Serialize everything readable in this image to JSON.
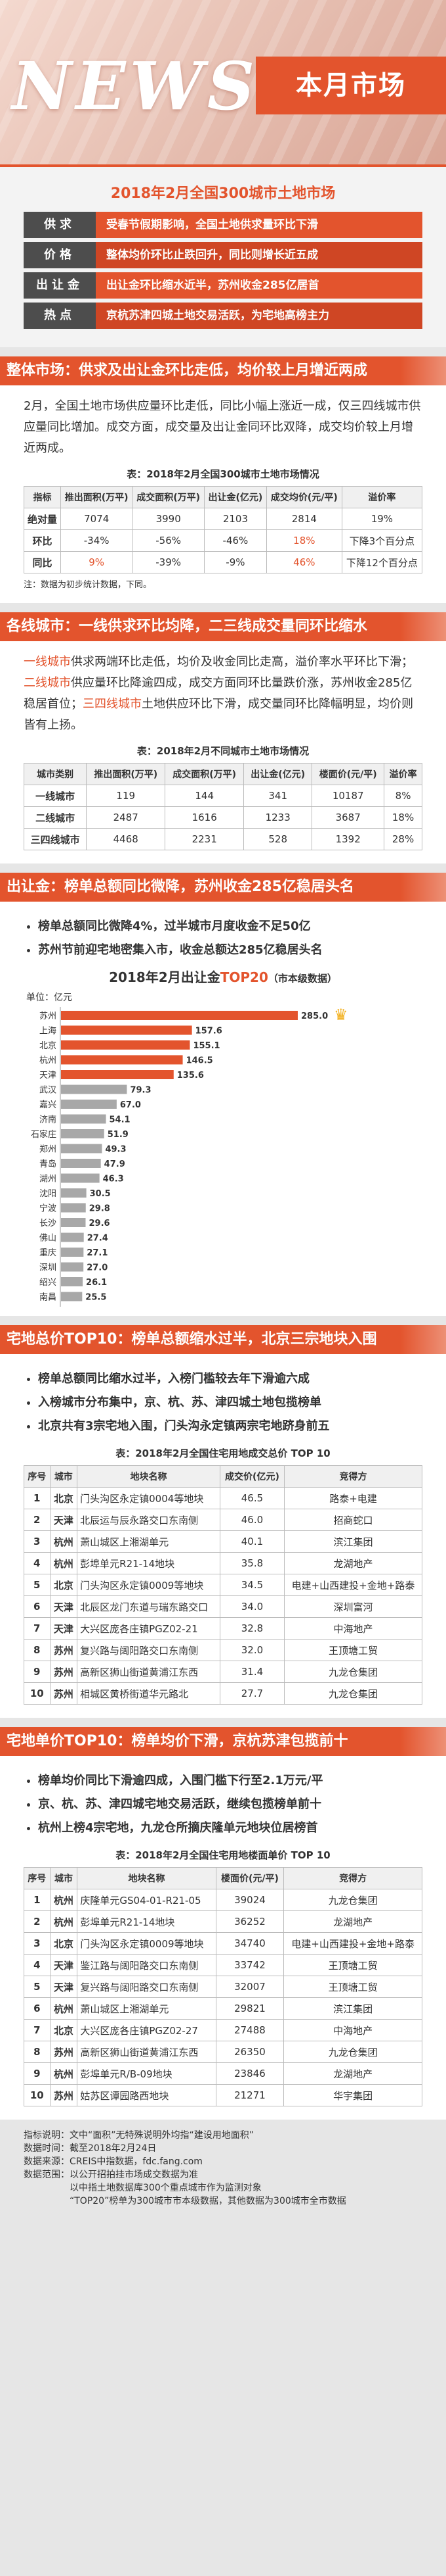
{
  "header": {
    "news": "NEWS",
    "banner": "本月市场"
  },
  "summary": {
    "title": "2018年2月全国300城市土地市场",
    "rows": [
      {
        "k": "供求",
        "v": "受春节假期影响，全国土地供求量环比下滑"
      },
      {
        "k": "价格",
        "v": "整体均价环比止跌回升，同比则增长近五成"
      },
      {
        "k": "出让金",
        "v": "出让金环比缩水近半，苏州收金285亿居首"
      },
      {
        "k": "热点",
        "v": "京杭苏津四城土地交易活跃，为宅地高榜主力"
      }
    ]
  },
  "s1": {
    "title": "整体市场：供求及出让金环比走低，均价较上月增近两成",
    "para": "2月，全国土地市场供应量环比走低，同比小幅上涨近一成，仅三四线城市供应量同比增加。成交方面，成交量及出让金同环比双降，成交均价较上月增近两成。",
    "caption": "表：2018年2月全国300城市土地市场情况",
    "headers": [
      "指标",
      "推出面积(万平)",
      "成交面积(万平)",
      "出让金(亿元)",
      "成交均价(元/平)",
      "溢价率"
    ],
    "rows": [
      [
        "绝对量",
        "7074",
        "3990",
        "2103",
        "2814",
        "19%"
      ],
      [
        "环比",
        "-34%",
        "-56%",
        "-46%",
        "18%",
        "下降3个百分点"
      ],
      [
        "同比",
        "9%",
        "-39%",
        "-9%",
        "46%",
        "下降12个百分点"
      ]
    ],
    "note": "注：数据为初步统计数据，下同。"
  },
  "s2": {
    "title": "各线城市：一线供求环比均降，二三线成交量同环比缩水",
    "p1a": "一线城市",
    "p1b": "供求两端环比走低，均价及收金同比走高，溢价率水平环比下滑；",
    "p1c": "二线城市",
    "p1d": "供应量环比降逾四成，成交方面同环比量跌价涨，苏州收金285亿稳居首位；",
    "p1e": "三四线城市",
    "p1f": "土地供应环比下滑，成交量同环比降幅明显，均价则皆有上扬。",
    "caption": "表：2018年2月不同城市土地市场情况",
    "headers": [
      "城市类别",
      "推出面积(万平)",
      "成交面积(万平)",
      "出让金(亿元)",
      "楼面价(元/平)",
      "溢价率"
    ],
    "rows": [
      [
        "一线城市",
        "119",
        "144",
        "341",
        "10187",
        "8%"
      ],
      [
        "二线城市",
        "2487",
        "1616",
        "1233",
        "3687",
        "18%"
      ],
      [
        "三四线城市",
        "4468",
        "2231",
        "528",
        "1392",
        "28%"
      ]
    ]
  },
  "s3": {
    "title": "出让金：榜单总额同比微降，苏州收金285亿稳居头名",
    "bullets": [
      "榜单总额同比微降4%，过半城市月度收金不足50亿",
      "苏州节前迎宅地密集入市，收金总额达285亿稳居头名"
    ],
    "chart_title_a": "2018年2月出让金",
    "chart_title_b": "TOP20",
    "chart_title_c": "（市本级数据）",
    "unit": "单位：亿元",
    "crown": "♛"
  },
  "chart_data": {
    "type": "bar",
    "title": "2018年2月出让金TOP20（市本级数据）",
    "ylabel": "单位：亿元",
    "categories": [
      "苏州",
      "上海",
      "北京",
      "杭州",
      "天津",
      "武汉",
      "嘉兴",
      "济南",
      "石家庄",
      "郑州",
      "青岛",
      "湖州",
      "沈阳",
      "宁波",
      "长沙",
      "佛山",
      "重庆",
      "深圳",
      "绍兴",
      "南昌"
    ],
    "values": [
      285.0,
      157.6,
      155.1,
      146.5,
      135.6,
      79.3,
      67.0,
      54.1,
      51.9,
      49.3,
      47.9,
      46.3,
      30.5,
      29.8,
      29.6,
      27.4,
      27.1,
      27.0,
      26.1,
      25.5
    ],
    "labels": [
      "285.0",
      "157.6",
      "155.1",
      "146.5",
      "135.6",
      "79.3",
      "67.0",
      "54.1",
      "51.9",
      "49.3",
      "47.9",
      "46.3",
      "30.5",
      "29.8",
      "29.6",
      "27.4",
      "27.1",
      "27.0",
      "26.1",
      "25.5"
    ],
    "xlim": [
      0,
      300
    ],
    "orientation": "horizontal"
  },
  "s4": {
    "title": "宅地总价TOP10：榜单总额缩水过半，北京三宗地块入围",
    "bullets": [
      "榜单总额同比缩水过半，入榜门槛较去年下滑逾六成",
      "入榜城市分布集中，京、杭、苏、津四城土地包揽榜单",
      "北京共有3宗宅地入围，门头沟永定镇两宗宅地跻身前五"
    ],
    "caption": "表：2018年2月全国住宅用地成交总价 TOP 10",
    "headers": [
      "序号",
      "城市",
      "地块名称",
      "成交价(亿元)",
      "竞得方"
    ],
    "rows": [
      [
        "1",
        "北京",
        "门头沟区永定镇0004等地块",
        "46.5",
        "路泰+电建"
      ],
      [
        "2",
        "天津",
        "北辰运与辰永路交口东南侧",
        "46.0",
        "招商蛇口"
      ],
      [
        "3",
        "杭州",
        "萧山城区上湘湖单元",
        "40.1",
        "滨江集团"
      ],
      [
        "4",
        "杭州",
        "彭埠单元R21-14地块",
        "35.8",
        "龙湖地产"
      ],
      [
        "5",
        "北京",
        "门头沟区永定镇0009等地块",
        "34.5",
        "电建+山西建投+金地+路泰"
      ],
      [
        "6",
        "天津",
        "北辰区龙门东道与瑞东路交口",
        "34.0",
        "深圳富河"
      ],
      [
        "7",
        "天津",
        "大兴区庞各庄镇PGZ02-21",
        "32.8",
        "中海地产"
      ],
      [
        "8",
        "苏州",
        "复兴路与阔阳路交口东南侧",
        "32.0",
        "王顶塘工贸"
      ],
      [
        "9",
        "苏州",
        "高新区狮山街道黄浦江东西",
        "31.4",
        "九龙仓集团"
      ],
      [
        "10",
        "苏州",
        "相城区黄桥街道华元路北",
        "27.7",
        "九龙仓集团"
      ]
    ]
  },
  "s5": {
    "title": "宅地单价TOP10：榜单均价下滑，京杭苏津包揽前十",
    "bullets": [
      "榜单均价同比下滑逾四成，入围门槛下行至2.1万元/平",
      "京、杭、苏、津四城宅地交易活跃，继续包揽榜单前十",
      "杭州上榜4宗宅地，九龙仓所摘庆隆单元地块位居榜首"
    ],
    "caption": "表：2018年2月全国住宅用地楼面单价 TOP 10",
    "headers": [
      "序号",
      "城市",
      "地块名称",
      "楼面价(元/平)",
      "竞得方"
    ],
    "rows": [
      [
        "1",
        "杭州",
        "庆隆单元GS04-01-R21-05",
        "39024",
        "九龙仓集团"
      ],
      [
        "2",
        "杭州",
        "彭埠单元R21-14地块",
        "36252",
        "龙湖地产"
      ],
      [
        "3",
        "北京",
        "门头沟区永定镇0009等地块",
        "34740",
        "电建+山西建投+金地+路泰"
      ],
      [
        "4",
        "天津",
        "鉴江路与阔阳路交口东南侧",
        "33742",
        "王顶塘工贸"
      ],
      [
        "5",
        "天津",
        "复兴路与阔阳路交口东南侧",
        "32007",
        "王顶塘工贸"
      ],
      [
        "6",
        "杭州",
        "萧山城区上湘湖单元",
        "29821",
        "滨江集团"
      ],
      [
        "7",
        "北京",
        "大兴区庞各庄镇PGZ02-27",
        "27488",
        "中海地产"
      ],
      [
        "8",
        "苏州",
        "高新区狮山街道黄浦江东西",
        "26350",
        "九龙仓集团"
      ],
      [
        "9",
        "杭州",
        "彭埠单元R/B-09地块",
        "23846",
        "龙湖地产"
      ],
      [
        "10",
        "苏州",
        "姑苏区谭园路西地块",
        "21271",
        "华宇集团"
      ]
    ]
  },
  "footer": {
    "lines": [
      "指标说明：文中“面积”无特殊说明外均指“建设用地面积”",
      "数据时间：截至2018年2月24日",
      "数据来源：CREIS中指数据，fdc.fang.com",
      "数据范围：以公开招拍挂市场成交数据为准",
      "　　　　　以中指土地数据库300个重点城市作为监测对象",
      "　　　　　“TOP20”榜单为300城市市本级数据，其他数据为300城市全市数据"
    ]
  }
}
